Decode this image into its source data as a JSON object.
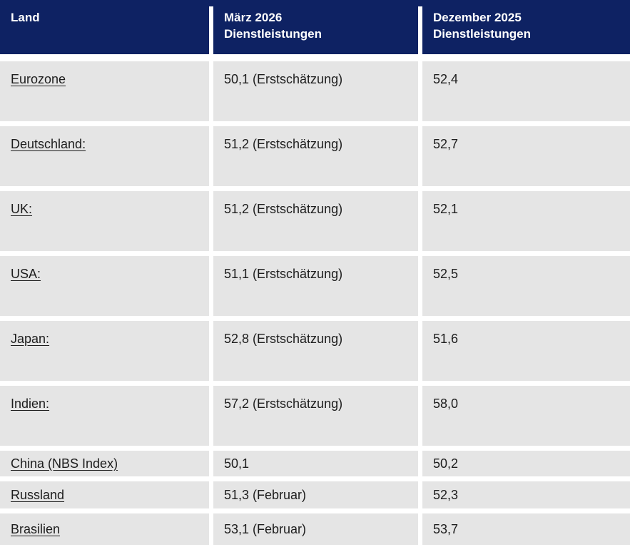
{
  "colors": {
    "header_bg": "#0e2263",
    "header_text": "#ffffff",
    "row_bg": "#e5e5e5",
    "body_text": "#1d1d1d",
    "gutter": "#ffffff"
  },
  "header": {
    "col1": "Land",
    "col2": "März 2026\nDienstleistungen",
    "col3": "Dezember 2025\nDienstleistungen"
  },
  "chart_data": {
    "type": "table",
    "title": "",
    "columns": [
      "Land",
      "März 2026 Dienstleistungen",
      "Dezember 2025 Dienstleistungen"
    ],
    "rows": [
      [
        "Eurozone",
        "50,1 (Erstschätzung)",
        "52,4"
      ],
      [
        "Deutschland:",
        "51,2 (Erstschätzung)",
        "52,7"
      ],
      [
        "UK:",
        "51,2 (Erstschätzung)",
        "52,1"
      ],
      [
        "USA:",
        "51,1 (Erstschätzung)",
        "52,5"
      ],
      [
        "Japan:",
        "52,8 (Erstschätzung)",
        "51,6"
      ],
      [
        "Indien:",
        "57,2 (Erstschätzung)",
        "58,0"
      ],
      [
        "China (NBS Index)",
        "50,1",
        "50,2"
      ],
      [
        "Russland",
        "51,3 (Februar)",
        "52,3"
      ],
      [
        "Brasilien",
        "53,1 (Februar)",
        "53,7"
      ]
    ]
  }
}
